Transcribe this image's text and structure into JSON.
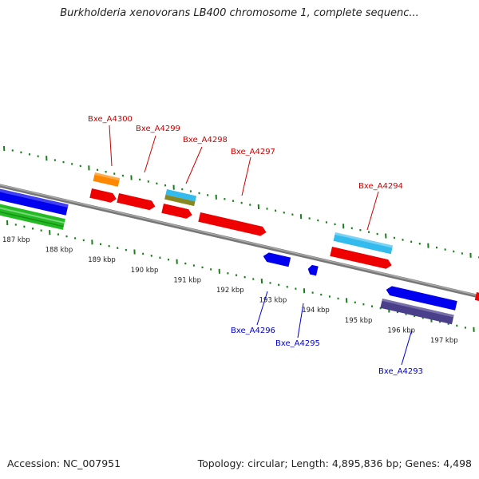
{
  "title": "Burkholderia xenovorans LB400 chromosome 1, complete sequenc...",
  "footer": {
    "accession": "Accession: NC_007951",
    "summary": "Topology: circular; Length: 4,895,836 bp; Genes: 4,498"
  },
  "colors": {
    "backbone": "#888888",
    "ticks": "#1a7f1a",
    "label_top": "#cc0000",
    "label_bottom": "#0000cc",
    "red": "#ee0000",
    "blue": "#0000ee",
    "green": "#22bb22",
    "orange": "#ff8800",
    "cyan": "#33bbee",
    "olive": "#888822",
    "purple": "#4a3f8a"
  },
  "scale_labels": [
    "187 kbp",
    "188 kbp",
    "189 kbp",
    "190 kbp",
    "191 kbp",
    "192 kbp",
    "193 kbp",
    "194 kbp",
    "195 kbp",
    "196 kbp",
    "197 kbp"
  ],
  "gene_labels_top": [
    "Bxe_A4300",
    "Bxe_A4299",
    "Bxe_A4298",
    "Bxe_A4297",
    "Bxe_A4294"
  ],
  "gene_labels_bottom": [
    "Bxe_A4296",
    "Bxe_A4295",
    "Bxe_A4293"
  ]
}
